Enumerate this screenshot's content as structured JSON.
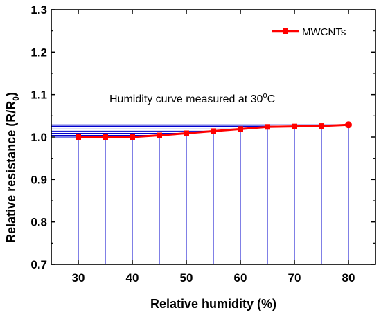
{
  "chart_data": {
    "type": "line",
    "title": "",
    "xlabel": "Relative humidity (%)",
    "ylabel": "Relative resistance (R/R",
    "ylabel_sub": "0",
    "ylabel_end": ")",
    "xlim": [
      25,
      85
    ],
    "ylim": [
      0.7,
      1.3
    ],
    "xticks": [
      30,
      40,
      50,
      60,
      70,
      80
    ],
    "yticks": [
      0.7,
      0.8,
      0.9,
      1.0,
      1.1,
      1.2,
      1.3
    ],
    "grid": false,
    "legend_position": "top-right",
    "annotation": {
      "text_before": "Humidity curve measured at 30",
      "superscript": "o",
      "text_after": "C"
    },
    "series": [
      {
        "name": "MWCNTs",
        "color": "#ff0000",
        "marker": "square",
        "x": [
          30,
          35,
          40,
          45,
          50,
          55,
          60,
          65,
          70,
          75,
          80
        ],
        "y": [
          1.0,
          1.0,
          1.0,
          1.004,
          1.009,
          1.014,
          1.019,
          1.024,
          1.025,
          1.026,
          1.029
        ]
      }
    ],
    "drop_line_color": "#0000cc"
  }
}
